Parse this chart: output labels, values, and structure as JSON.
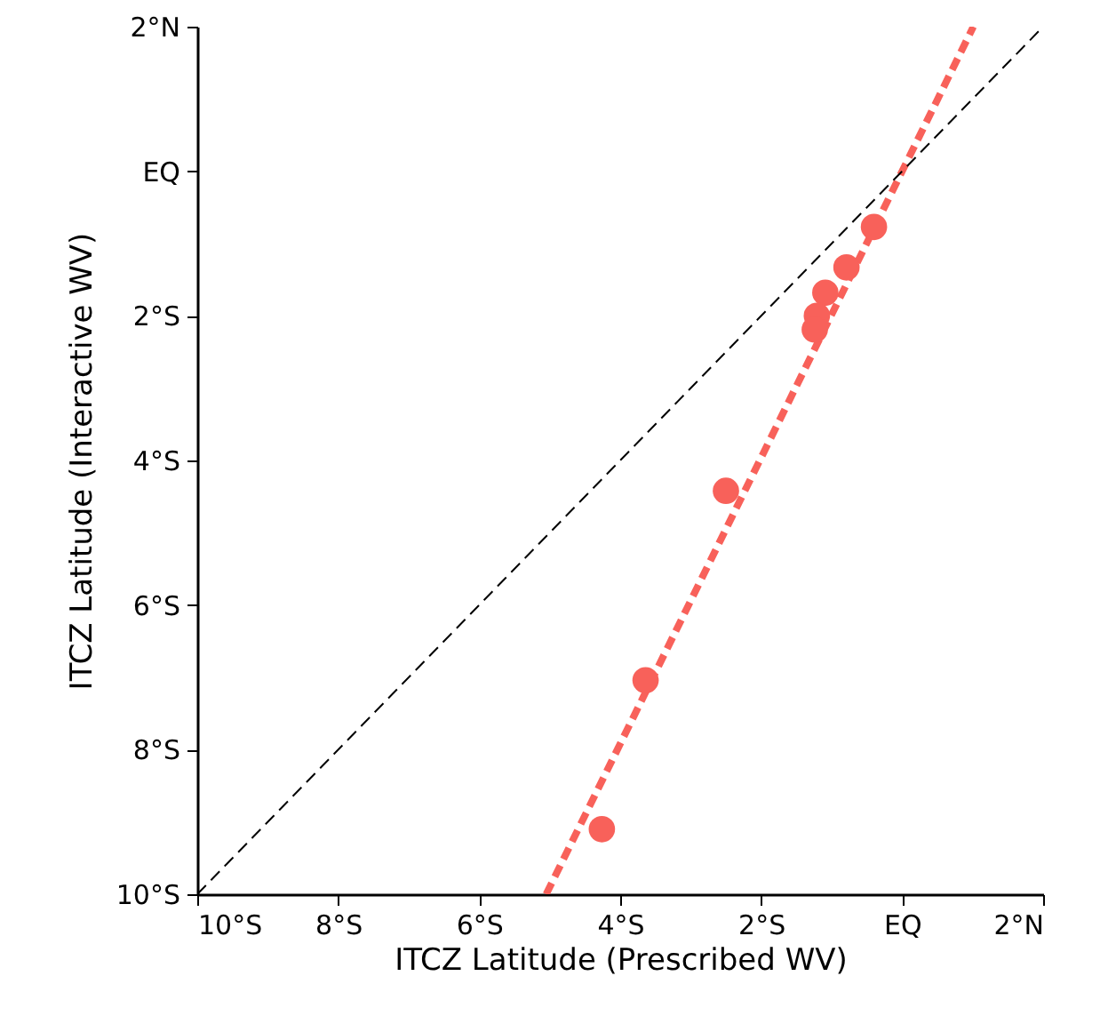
{
  "chart_data": {
    "type": "scatter",
    "xlabel": "ITCZ Latitude (Prescribed WV)",
    "ylabel": "ITCZ Latitude (Interactive WV)",
    "xlim": [
      -10,
      2
    ],
    "ylim": [
      -10,
      2
    ],
    "xticks": [
      {
        "value": -10,
        "label": "10°S"
      },
      {
        "value": -8,
        "label": "8°S"
      },
      {
        "value": -6,
        "label": "6°S"
      },
      {
        "value": -4,
        "label": "4°S"
      },
      {
        "value": -2,
        "label": "2°S"
      },
      {
        "value": 0,
        "label": "EQ"
      },
      {
        "value": 2,
        "label": "2°N"
      }
    ],
    "yticks": [
      {
        "value": -10,
        "label": "10°S"
      },
      {
        "value": -8,
        "label": "8°S"
      },
      {
        "value": -6,
        "label": "6°S"
      },
      {
        "value": -4,
        "label": "4°S"
      },
      {
        "value": -2,
        "label": "2°S"
      },
      {
        "value": 0,
        "label": "EQ"
      },
      {
        "value": 2,
        "label": "2°N"
      }
    ],
    "grid": false,
    "series": [
      {
        "color": "#f8615a",
        "marker": "circle",
        "x": [
          -0.4,
          -0.79,
          -1.09,
          -1.21,
          -1.24,
          -2.5,
          -3.64,
          -4.26
        ],
        "values": [
          -0.77,
          -1.33,
          -1.68,
          -2.0,
          -2.19,
          -4.42,
          -7.04,
          -9.1
        ]
      },
      {
        "type": "line",
        "color": "#f8615a",
        "line_style": "dashed",
        "x": [
          -5.05,
          1.01
        ],
        "values": [
          -10,
          2
        ]
      },
      {
        "type": "line",
        "color": "#000000",
        "line_style": "dashed",
        "x": [
          -10,
          2
        ],
        "values": [
          -10,
          2
        ]
      }
    ]
  }
}
